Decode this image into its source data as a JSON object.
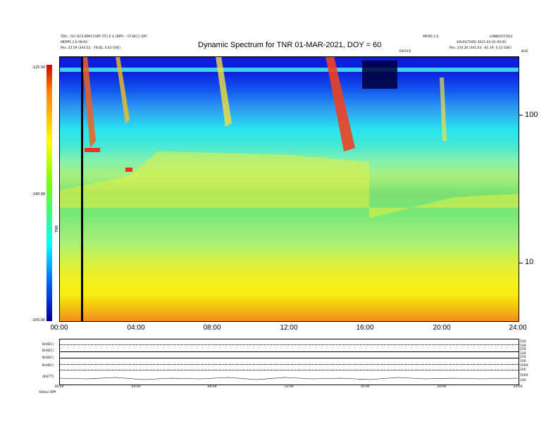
{
  "header": {
    "left_line1": "TDS – SCI QCS BPACCSPP (TCI E G (BPP) – 07-BCC) SPC",
    "left_line2": "MEPPS 2.0 09:00",
    "left_line3": "Pos: 23.19 (343.52, -76.82, 0.42 GSE)",
    "right_top_left": "MPOD 2.0",
    "right_top_right": "LOBBOOT:OEU",
    "right_line2": "SOLPICTURE 2021-03-02 00:00",
    "right_line3": "Pos: 234.26 (341.03, -81.19, 0.11 GSE)",
    "small_center": "DEVICE",
    "small_right": "KHZ"
  },
  "chart_data": {
    "type": "heatmap",
    "title": "Dynamic Spectrum for TNR 01-MAR-2021, DOY = 60",
    "x_tick_labels": [
      "00:00",
      "04:00",
      "08:00",
      "12:00",
      "16:00",
      "20:00",
      "24:00"
    ],
    "x_range_hours": [
      0,
      24
    ],
    "y_right_tick_labels": [
      "100",
      "10"
    ],
    "y_right_scale": "log",
    "y_right_unit": "kHz",
    "colorbar": {
      "tick_labels": [
        "-125.00",
        "-140.00",
        "-155.00"
      ],
      "label": "TNR"
    }
  },
  "bottom_panel": {
    "row_labels": [
      "B(ADC)",
      "B(ADC)",
      "B(ADC)",
      "B(ADC)",
      "|B(ETT)"
    ],
    "right_labels": [
      "250",
      "100",
      "250",
      "100",
      "250",
      "100",
      "1000",
      "100",
      "1000",
      "100"
    ],
    "x_tick_labels": [
      "00:00",
      "04:00",
      "08:00",
      "12:00",
      "16:00",
      "20:00",
      "24:00"
    ],
    "footer": "Status   DPA"
  }
}
